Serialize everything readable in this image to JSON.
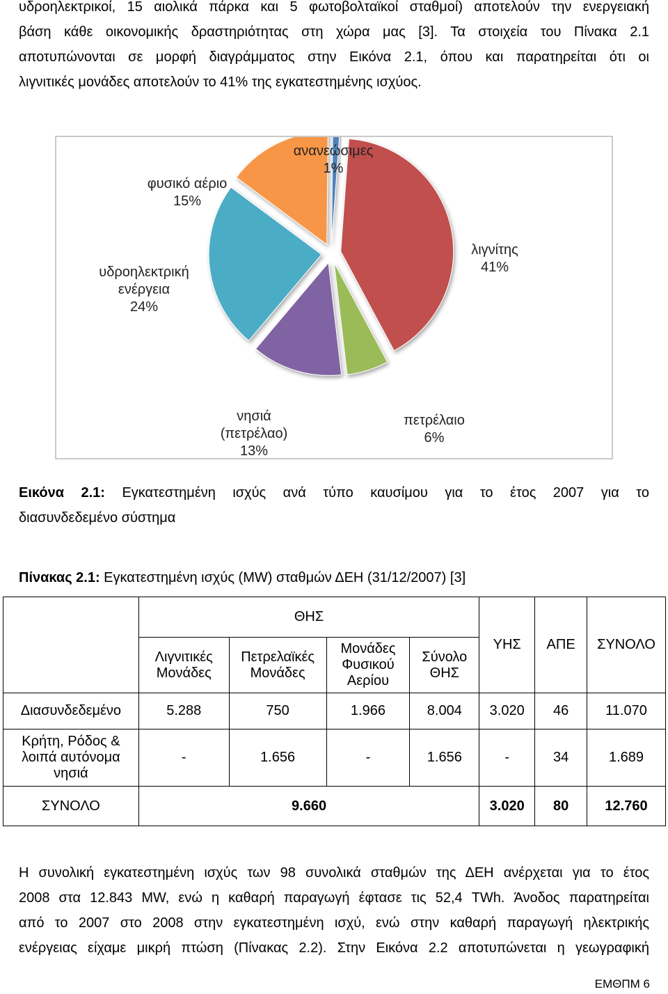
{
  "top_paragraph": [
    "υδροηλεκτρικοί, 15 αιολικά πάρκα και 5 φωτοβολταϊκοί σταθμοί) αποτελούν την ενεργειακή",
    "βάση κάθε οικονομικής δραστηριότητας στη χώρα μας [3]. Τα στοιχεία του Πίνακα 2.1",
    "αποτυπώνονται σε μορφή διαγράμματος στην Εικόνα 2.1, όπου και παρατηρείται ότι οι",
    "λιγνιτικές μονάδες αποτελούν το 41% της εγκατεστημένης ισχύος."
  ],
  "chart_data": {
    "type": "pie",
    "title": "",
    "slices": [
      {
        "label": "ανανεώσιμες",
        "value": 1,
        "pct_label": "1%",
        "color": "#4f81bd"
      },
      {
        "label": "λιγνίτης",
        "value": 41,
        "pct_label": "41%",
        "color": "#c0504d"
      },
      {
        "label": "πετρέλαιο",
        "value": 6,
        "pct_label": "6%",
        "color": "#9bbb59"
      },
      {
        "label": "νησιά (πετρέλαο)",
        "value": 13,
        "pct_label": "13%",
        "color": "#8064a2"
      },
      {
        "label": "υδροηλεκτρική ενέργεια",
        "value": 24,
        "pct_label": "24%",
        "color": "#4bacc6"
      },
      {
        "label": "φυσικό αέριο",
        "value": 15,
        "pct_label": "15%",
        "color": "#f79646"
      }
    ],
    "label_lines": {
      "renewables": [
        "ανανεώσιμες",
        "1%"
      ],
      "lignite": [
        "λιγνίτης",
        "41%"
      ],
      "oil": [
        "πετρέλαιο",
        "6%"
      ],
      "islands": [
        "νησιά",
        "(πετρέλαο)",
        "13%"
      ],
      "hydro": [
        "υδροηλεκτρική",
        "ενέργεια",
        "24%"
      ],
      "gas": [
        "φυσικό αέριο",
        "15%"
      ]
    }
  },
  "figure_caption": {
    "label": "Εικόνα 2.1:",
    "line1": "Εγκατεστημένη ισχύς ανά τύπο καυσίμου για το έτος 2007 για το",
    "line2": "διασυνδεδεμένο σύστημα"
  },
  "table_title": {
    "label": "Πίνακας 2.1:",
    "text": " Εγκατεστημένη ισχύς (MW) σταθμών ΔΕΗ  (31/12/2007) [3]"
  },
  "table": {
    "group_header": "ΘΗΣ",
    "headers": [
      "Λιγνιτικές Μονάδες",
      "Πετρελαϊκές Μονάδες",
      "Μονάδες Φυσικού Αερίου",
      "Σύνολο ΘΗΣ",
      "ΥΗΣ",
      "ΑΠΕ",
      "ΣΥΝΟΛΟ"
    ],
    "rows": [
      {
        "name": "Διασυνδεδεμένο",
        "cells": [
          "5.288",
          "750",
          "1.966",
          "8.004",
          "3.020",
          "46",
          "11.070"
        ]
      },
      {
        "name": "Κρήτη, Ρόδος & λοιπά αυτόνομα νησιά",
        "cells": [
          "-",
          "1.656",
          "-",
          "1.656",
          "-",
          "34",
          "1.689"
        ]
      }
    ],
    "total": {
      "name": "ΣΥΝΟΛΟ",
      "thermal_total": "9.660",
      "cells": [
        "3.020",
        "80",
        "12.760"
      ]
    }
  },
  "bottom_paragraph": [
    "Η συνολική εγκατεστημένη ισχύς των 98 συνολικά σταθμών της ΔΕΗ ανέρχεται για το έτος",
    "2008 στα 12.843 MW, ενώ η καθαρή παραγωγή έφτασε τις 52,4 TWh. Άνοδος παρατηρείται",
    "από το 2007 στο 2008 στην εγκατεστημένη ισχύ, ενώ στην καθαρή παραγωγή ηλεκτρικής",
    "ενέργειας είχαμε μικρή πτώση (Πίνακας 2.2). Στην Εικόνα 2.2 αποτυπώνεται η γεωγραφική"
  ],
  "footer": "ΕΜΘΠΜ 6"
}
